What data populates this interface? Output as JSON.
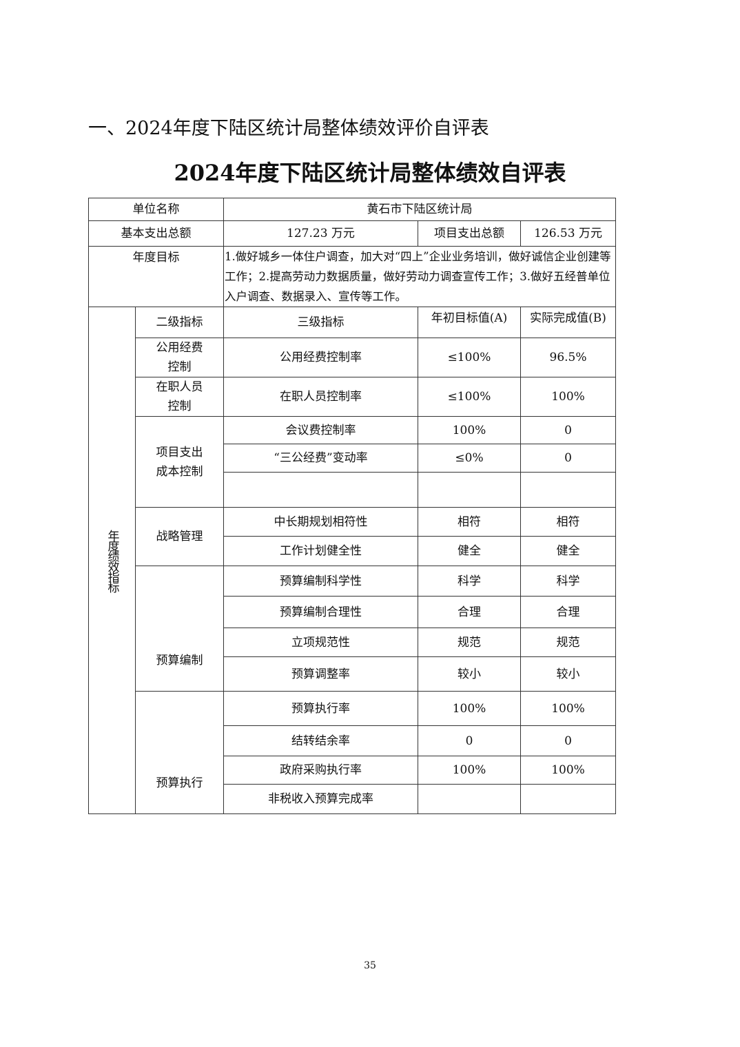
{
  "section_heading": "一、2024年度下陆区统计局整体绩效评价自评表",
  "title": "2024年度下陆区统计局整体绩效自评表",
  "unit_label": "单位名称",
  "unit_value": "黄石市下陆区统计局",
  "basic_label": "基本支出总额",
  "basic_value": "127.23 万元",
  "project_label": "项目支出总额",
  "project_value": "126.53 万元",
  "goal_label": "年度目标",
  "goal_text": "1.做好城乡一体住户调查，加大对“四上”企业业务培训，做好诚信企业创建等工作；2.提高劳动力数据质量，做好劳动力调查宣传工作；3.做好五经普单位入户调查、数据录入、宣传等工作。",
  "indicator_label": "年度绩效指标",
  "header": {
    "level2": "二级指标",
    "level3": "三级指标",
    "target": "年初目标值(A)",
    "actual": "实际完成值(B)"
  },
  "groups": [
    {
      "name": "公用经费\n控制",
      "items": [
        [
          "公用经费控制率",
          "≤100%",
          "96.5%"
        ]
      ]
    },
    {
      "name": "在职人员\n控制",
      "items": [
        [
          "在职人员控制率",
          "≤100%",
          "100%"
        ]
      ]
    },
    {
      "name": "项目支出\n成本控制",
      "items": [
        [
          "会议费控制率",
          "100%",
          "0"
        ],
        [
          "“三公经费”变动率",
          "≤0%",
          "0"
        ],
        [
          "",
          "",
          ""
        ]
      ]
    },
    {
      "name": "战略管理",
      "items": [
        [
          "中长期规划相符性",
          "相符",
          "相符"
        ],
        [
          "工作计划健全性",
          "健全",
          "健全"
        ]
      ]
    },
    {
      "name": "预算编制",
      "items": [
        [
          "预算编制科学性",
          "科学",
          "科学"
        ],
        [
          "预算编制合理性",
          "合理",
          "合理"
        ],
        [
          "立项规范性",
          "规范",
          "规范"
        ],
        [
          "预算调整率",
          "较小",
          "较小"
        ]
      ]
    },
    {
      "name": "预算执行",
      "items": [
        [
          "预算执行率",
          "100%",
          "100%"
        ],
        [
          "结转结余率",
          "0",
          "0"
        ],
        [
          "政府采购执行率",
          "100%",
          "100%"
        ],
        [
          "非税收入预算完成率",
          "",
          ""
        ]
      ]
    }
  ],
  "page_number": "35"
}
